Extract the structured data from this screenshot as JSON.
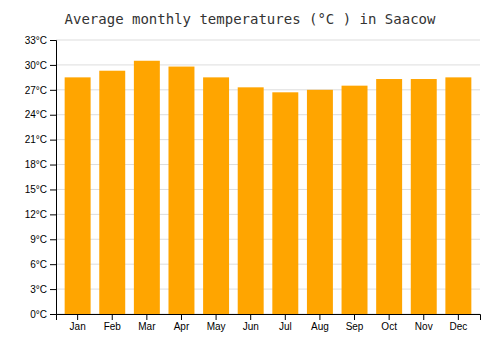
{
  "chart_data": {
    "type": "bar",
    "title": "Average monthly temperatures (°C ) in Saacow",
    "categories": [
      "Jan",
      "Feb",
      "Mar",
      "Apr",
      "May",
      "Jun",
      "Jul",
      "Aug",
      "Sep",
      "Oct",
      "Nov",
      "Dec"
    ],
    "values": [
      28.5,
      29.3,
      30.5,
      29.8,
      28.5,
      27.3,
      26.7,
      27.0,
      27.5,
      28.3,
      28.3,
      28.5
    ],
    "color": "#FFA500",
    "ylim": [
      0,
      33
    ],
    "yticks": [
      {
        "value": 0,
        "label": "0°C"
      },
      {
        "value": 3,
        "label": "3°C"
      },
      {
        "value": 6,
        "label": "6°C"
      },
      {
        "value": 9,
        "label": "9°C"
      },
      {
        "value": 12,
        "label": "12°C"
      },
      {
        "value": 15,
        "label": "15°C"
      },
      {
        "value": 18,
        "label": "18°C"
      },
      {
        "value": 21,
        "label": "21°C"
      },
      {
        "value": 24,
        "label": "24°C"
      },
      {
        "value": 27,
        "label": "27°C"
      },
      {
        "value": 30,
        "label": "30°C"
      },
      {
        "value": 33,
        "label": "33°C"
      }
    ],
    "grid": true
  }
}
